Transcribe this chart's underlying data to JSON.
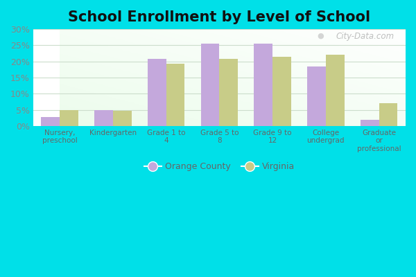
{
  "title": "School Enrollment by Level of School",
  "categories": [
    "Nursery,\npreschool",
    "Kindergarten",
    "Grade 1 to\n4",
    "Grade 5 to\n8",
    "Grade 9 to\n12",
    "College\nundergrad",
    "Graduate\nor\nprofessional"
  ],
  "orange_county": [
    2.8,
    5.0,
    20.8,
    25.5,
    25.6,
    18.5,
    2.0
  ],
  "virginia": [
    4.8,
    4.7,
    19.2,
    20.8,
    21.5,
    22.1,
    7.0
  ],
  "orange_county_color": "#c4a8dc",
  "virginia_color": "#c8cc88",
  "legend_labels": [
    "Orange County",
    "Virginia"
  ],
  "ylim": [
    0,
    30
  ],
  "yticks": [
    0,
    5,
    10,
    15,
    20,
    25,
    30
  ],
  "ytick_labels": [
    "0%",
    "5%",
    "10%",
    "15%",
    "20%",
    "25%",
    "30%"
  ],
  "outer_background": "#00e0e8",
  "bar_width": 0.35,
  "title_fontsize": 15,
  "watermark": "City-Data.com",
  "grid_color": "#ccddcc",
  "tick_color": "#888888",
  "label_color": "#666666"
}
